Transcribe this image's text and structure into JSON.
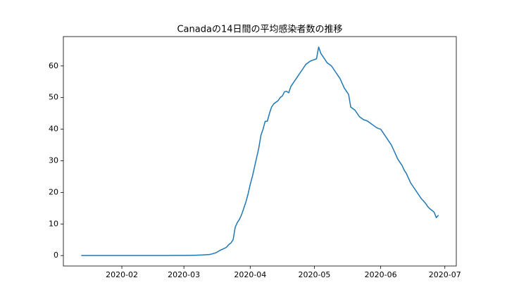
{
  "chart_data": {
    "type": "line",
    "title": "Canadaの14日間の平均感染者数の推移",
    "x": [
      13,
      14,
      15,
      16,
      17,
      18,
      19,
      20,
      21,
      22,
      23,
      24,
      25,
      26,
      27,
      28,
      29,
      30,
      31,
      32,
      33,
      34,
      35,
      36,
      37,
      38,
      39,
      40,
      41,
      42,
      43,
      44,
      45,
      46,
      47,
      48,
      49,
      50,
      51,
      52,
      53,
      54,
      55,
      56,
      57,
      58,
      59,
      60,
      61,
      62,
      63,
      64,
      65,
      66,
      67,
      68,
      69,
      70,
      71,
      72,
      73,
      74,
      75,
      76,
      77,
      78,
      79,
      80,
      81,
      82,
      83,
      84,
      85,
      86,
      87,
      88,
      89,
      90,
      91,
      92,
      93,
      94,
      95,
      96,
      97,
      98,
      99,
      100,
      101,
      102,
      103,
      104,
      105,
      106,
      107,
      108,
      109,
      110,
      111,
      112,
      113,
      114,
      115,
      116,
      117,
      118,
      119,
      120,
      121,
      122,
      123,
      124,
      125,
      126,
      127,
      128,
      129,
      130,
      131,
      132,
      133,
      134,
      135,
      136,
      137,
      138,
      139,
      140,
      141,
      142,
      143,
      144,
      145,
      146,
      147,
      148,
      149,
      150,
      151,
      152,
      153,
      154,
      155,
      156,
      157,
      158,
      159,
      160,
      161,
      162,
      163,
      164,
      165,
      166,
      167,
      168,
      169,
      170,
      171,
      172,
      173,
      174,
      175,
      176,
      177,
      178,
      179,
      180
    ],
    "values": [
      0,
      0,
      0,
      0,
      0,
      0,
      0,
      0,
      0,
      0,
      0,
      0,
      0,
      0,
      0,
      0,
      0,
      0,
      0,
      0.01,
      0.01,
      0.01,
      0.01,
      0.01,
      0.01,
      0.01,
      0.01,
      0.01,
      0.01,
      0.01,
      0.01,
      0.01,
      0.01,
      0.01,
      0.02,
      0.02,
      0.02,
      0.02,
      0.02,
      0.02,
      0.02,
      0.02,
      0.03,
      0.03,
      0.03,
      0.03,
      0.04,
      0.04,
      0.05,
      0.05,
      0.06,
      0.07,
      0.08,
      0.1,
      0.12,
      0.15,
      0.18,
      0.2,
      0.25,
      0.3,
      0.35,
      0.5,
      0.7,
      0.9,
      1.3,
      1.7,
      2.0,
      2.3,
      2.7,
      3.5,
      4.0,
      5.0,
      9.0,
      10.5,
      11.5,
      13,
      15,
      17,
      19.5,
      22.5,
      25,
      28,
      31,
      34,
      38,
      40,
      42.5,
      42.5,
      45,
      47,
      48,
      48.5,
      49,
      50,
      50.5,
      51.8,
      52,
      51.5,
      53.5,
      54.5,
      55.5,
      56.5,
      57.5,
      58.5,
      59.5,
      60.5,
      61,
      61.5,
      61.8,
      62,
      62.3,
      66,
      64,
      63,
      62,
      61,
      60.5,
      60,
      59,
      58,
      57,
      56,
      54.5,
      53,
      52,
      51,
      47,
      46.5,
      46,
      45,
      44,
      43.5,
      43,
      42.8,
      42.5,
      42,
      41.5,
      41,
      40.5,
      40.2,
      40,
      39,
      38,
      37,
      36,
      35,
      33.5,
      32,
      30.5,
      29.5,
      28.5,
      27,
      26,
      24.5,
      23,
      22,
      21,
      20,
      19,
      18,
      17.3,
      16.5,
      15.5,
      14.8,
      14.3,
      13.7,
      12,
      12.8
    ],
    "color": "#1f77b4",
    "xlim": [
      4.65,
      188.35
    ],
    "xticks": [
      {
        "value": 32,
        "label": "2020-02"
      },
      {
        "value": 61,
        "label": "2020-03"
      },
      {
        "value": 92,
        "label": "2020-04"
      },
      {
        "value": 122,
        "label": "2020-05"
      },
      {
        "value": 153,
        "label": "2020-06"
      },
      {
        "value": 183,
        "label": "2020-07"
      }
    ],
    "ylim": [
      -3.3,
      69.3
    ],
    "yticks": [
      0,
      10,
      20,
      30,
      40,
      50,
      60
    ]
  }
}
